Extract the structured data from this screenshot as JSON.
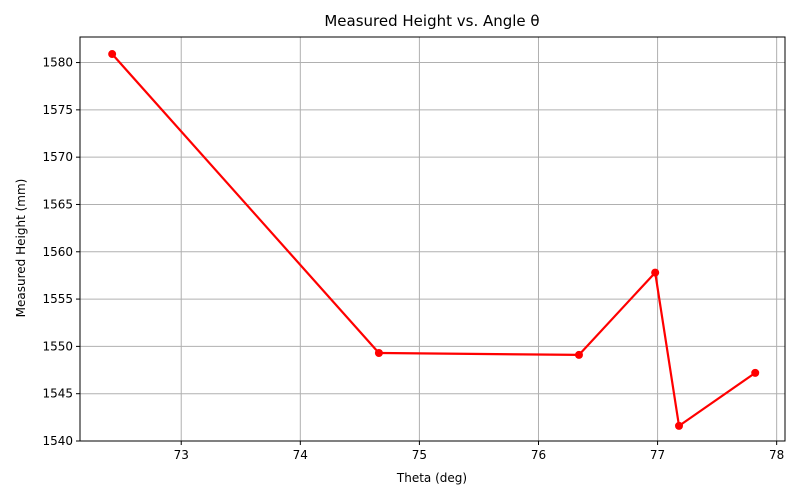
{
  "chart_data": {
    "type": "line",
    "title": "Measured Height vs. Angle θ",
    "xlabel": "Theta (deg)",
    "ylabel": "Measured Height (mm)",
    "xlim": [
      72.15,
      78.07
    ],
    "ylim": [
      1540.0,
      1582.7
    ],
    "xticks": [
      73,
      74,
      75,
      76,
      77,
      78
    ],
    "yticks": [
      1540,
      1545,
      1550,
      1555,
      1560,
      1565,
      1570,
      1575,
      1580
    ],
    "grid": true,
    "series": [
      {
        "color": "#ff0000",
        "marker": "circle",
        "x": [
          72.42,
          74.66,
          76.34,
          76.98,
          77.18,
          77.82
        ],
        "y": [
          1580.9,
          1549.3,
          1549.1,
          1557.8,
          1541.6,
          1547.2
        ]
      }
    ]
  }
}
